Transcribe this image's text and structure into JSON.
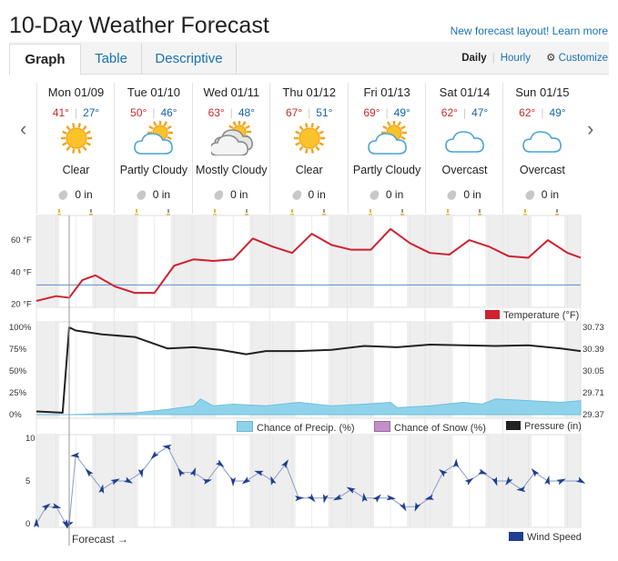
{
  "title": "10-Day Weather Forecast",
  "new_layout_link": "New forecast layout! Learn more",
  "tabs": [
    {
      "label": "Graph",
      "active": true
    },
    {
      "label": "Table",
      "active": false
    },
    {
      "label": "Descriptive",
      "active": false
    }
  ],
  "modes": {
    "daily": "Daily",
    "hourly": "Hourly",
    "customize": "Customize",
    "customize_icon": "gear-icon"
  },
  "days": [
    {
      "date": "Mon 01/09",
      "high": "41°",
      "low": "27°",
      "condition": "Clear",
      "icon": "sun",
      "precip": "0 in"
    },
    {
      "date": "Tue 01/10",
      "high": "50°",
      "low": "46°",
      "condition": "Partly Cloudy",
      "icon": "partly",
      "precip": "0 in"
    },
    {
      "date": "Wed 01/11",
      "high": "63°",
      "low": "48°",
      "condition": "Mostly Cloudy",
      "icon": "mostly",
      "precip": "0 in"
    },
    {
      "date": "Thu 01/12",
      "high": "67°",
      "low": "51°",
      "condition": "Clear",
      "icon": "sun",
      "precip": "0 in"
    },
    {
      "date": "Fri 01/13",
      "high": "69°",
      "low": "49°",
      "condition": "Partly Cloudy",
      "icon": "partly",
      "precip": "0 in"
    },
    {
      "date": "Sat 01/14",
      "high": "62°",
      "low": "47°",
      "condition": "Overcast",
      "icon": "overcast",
      "precip": "0 in"
    },
    {
      "date": "Sun 01/15",
      "high": "62°",
      "low": "49°",
      "condition": "Overcast",
      "icon": "overcast",
      "precip": "0 in"
    }
  ],
  "colors": {
    "temperature": "#d0202e",
    "freezing_line": "#5a8fc7",
    "precip": "#8fd3ea",
    "snow": "#c48ec8",
    "pressure": "#222222",
    "wind": "#1f3f8f"
  },
  "chart_data": [
    {
      "type": "line",
      "ylabel": "",
      "yticks": [
        "20 °F",
        "40 °F",
        "60 °F"
      ],
      "ylim": [
        18,
        72
      ],
      "freezing_line": 32,
      "series": [
        {
          "name": "Temperature (°F)",
          "x": [
            0,
            6,
            10,
            14,
            18,
            24,
            30,
            36,
            42,
            48,
            54,
            60,
            66,
            72,
            78,
            84,
            90,
            96,
            102,
            108,
            114,
            120,
            126,
            132,
            138,
            144,
            150,
            156,
            162,
            166
          ],
          "values": [
            22,
            25,
            24,
            35,
            38,
            31,
            27,
            27,
            44,
            48,
            47,
            48,
            61,
            56,
            52,
            64,
            57,
            54,
            54,
            67,
            58,
            52,
            51,
            60,
            56,
            50,
            49,
            60,
            52,
            49
          ]
        }
      ],
      "legend": "Temperature (°F)"
    },
    {
      "type": "line",
      "yticks_left": [
        "0%",
        "25%",
        "50%",
        "75%",
        "100%"
      ],
      "yticks_right": [
        "29.37",
        "29.71",
        "30.05",
        "30.39",
        "30.73"
      ],
      "series": [
        {
          "name": "Pressure (in)",
          "x": [
            0,
            8,
            10,
            12,
            20,
            30,
            40,
            48,
            56,
            64,
            70,
            80,
            90,
            100,
            110,
            120,
            130,
            140,
            150,
            160,
            166
          ],
          "values": [
            29.42,
            29.4,
            30.73,
            30.68,
            30.62,
            30.58,
            30.4,
            30.42,
            30.38,
            30.31,
            30.36,
            30.36,
            30.38,
            30.44,
            30.42,
            30.46,
            30.45,
            30.44,
            30.45,
            30.4,
            30.36
          ]
        },
        {
          "name": "Chance of Precip. (%)",
          "x": [
            0,
            10,
            30,
            40,
            48,
            50,
            54,
            60,
            70,
            80,
            90,
            100,
            108,
            110,
            120,
            130,
            136,
            140,
            150,
            160,
            166
          ],
          "values": [
            0,
            0,
            2,
            6,
            10,
            18,
            10,
            12,
            10,
            14,
            10,
            12,
            14,
            8,
            10,
            14,
            12,
            18,
            16,
            14,
            16
          ]
        },
        {
          "name": "Chance of Snow (%)",
          "values": []
        }
      ],
      "legend": [
        "Chance of Precip. (%)",
        "Chance of Snow (%)",
        "Pressure (in)"
      ]
    },
    {
      "type": "line",
      "yticks": [
        "0",
        "5",
        "10"
      ],
      "ylim": [
        0,
        10
      ],
      "series": [
        {
          "name": "Wind Speed",
          "x": [
            0,
            3,
            6,
            9,
            10,
            12,
            16,
            20,
            24,
            28,
            32,
            36,
            40,
            44,
            48,
            52,
            56,
            60,
            64,
            68,
            72,
            76,
            80,
            84,
            88,
            92,
            96,
            100,
            104,
            108,
            112,
            116,
            120,
            124,
            128,
            132,
            136,
            140,
            144,
            148,
            152,
            156,
            160,
            166
          ],
          "values": [
            0,
            2,
            2,
            0,
            0,
            8,
            6,
            4,
            5,
            5,
            6,
            8,
            9,
            6,
            6,
            5,
            7,
            5,
            5,
            6,
            5,
            7,
            3,
            3,
            3,
            3,
            4,
            3,
            3,
            3,
            2,
            2,
            3,
            6,
            7,
            5,
            6,
            5,
            5,
            4,
            6,
            5,
            5,
            5
          ]
        }
      ],
      "legend": "Wind Speed"
    }
  ],
  "forecast_label": "Forecast →"
}
